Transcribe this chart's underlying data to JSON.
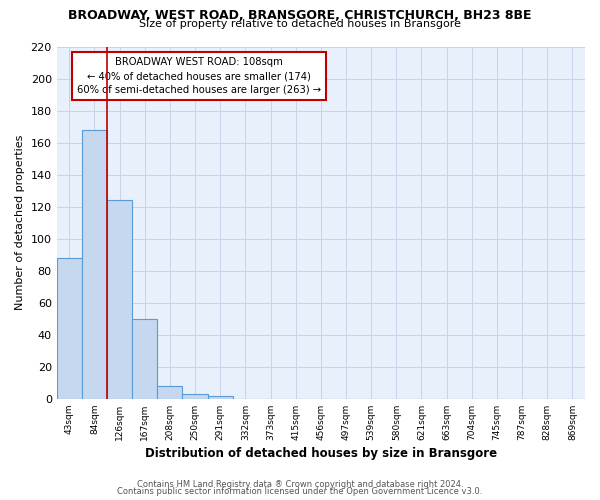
{
  "title1": "BROADWAY, WEST ROAD, BRANSGORE, CHRISTCHURCH, BH23 8BE",
  "title2": "Size of property relative to detached houses in Bransgore",
  "xlabel": "Distribution of detached houses by size in Bransgore",
  "ylabel": "Number of detached properties",
  "bin_labels": [
    "43sqm",
    "84sqm",
    "126sqm",
    "167sqm",
    "208sqm",
    "250sqm",
    "291sqm",
    "332sqm",
    "373sqm",
    "415sqm",
    "456sqm",
    "497sqm",
    "539sqm",
    "580sqm",
    "621sqm",
    "663sqm",
    "704sqm",
    "745sqm",
    "787sqm",
    "828sqm",
    "869sqm"
  ],
  "bar_heights": [
    88,
    168,
    124,
    50,
    8,
    3,
    2,
    0,
    0,
    0,
    0,
    0,
    0,
    0,
    0,
    0,
    0,
    0,
    0,
    0,
    0
  ],
  "bar_color": "#c5d8f0",
  "bar_edge_color": "#5b9bd5",
  "vline_x": 1.5,
  "vline_color": "#c00000",
  "annotation_title": "BROADWAY WEST ROAD: 108sqm",
  "annotation_line1": "← 40% of detached houses are smaller (174)",
  "annotation_line2": "60% of semi-detached houses are larger (263) →",
  "annotation_box_color": "#ffffff",
  "annotation_box_edge": "#c00000",
  "ylim": [
    0,
    220
  ],
  "yticks": [
    0,
    20,
    40,
    60,
    80,
    100,
    120,
    140,
    160,
    180,
    200,
    220
  ],
  "footer1": "Contains HM Land Registry data ® Crown copyright and database right 2024.",
  "footer2": "Contains public sector information licensed under the Open Government Licence v3.0.",
  "bg_color": "#e8f0fb"
}
